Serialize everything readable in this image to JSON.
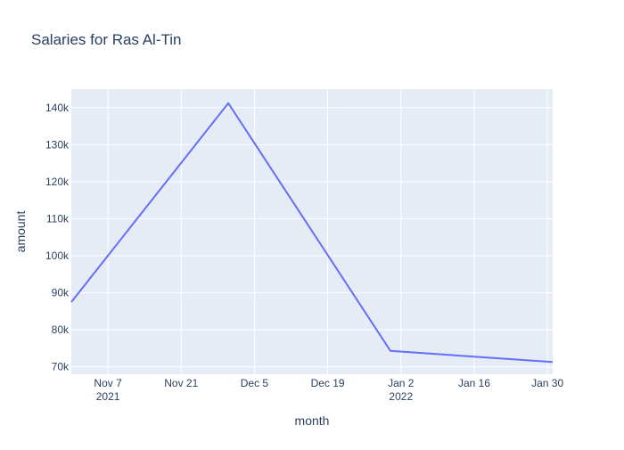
{
  "chart_data": {
    "type": "line",
    "title": "Salaries for Ras Al-Tin",
    "xlabel": "month",
    "ylabel": "amount",
    "x": [
      "2021-10-31",
      "2021-11-30",
      "2021-12-31",
      "2022-01-31"
    ],
    "series": [
      {
        "values": [
          87500,
          141200,
          74300,
          71300
        ]
      }
    ],
    "xlim": [
      "2021-10-31",
      "2022-01-31"
    ],
    "ylim": [
      68000,
      145000
    ],
    "x_ticks": [
      {
        "date": "2021-11-07",
        "label": "Nov 7",
        "sublabel": "2021"
      },
      {
        "date": "2021-11-21",
        "label": "Nov 21",
        "sublabel": ""
      },
      {
        "date": "2021-12-05",
        "label": "Dec 5",
        "sublabel": ""
      },
      {
        "date": "2021-12-19",
        "label": "Dec 19",
        "sublabel": ""
      },
      {
        "date": "2022-01-02",
        "label": "Jan 2",
        "sublabel": "2022"
      },
      {
        "date": "2022-01-16",
        "label": "Jan 16",
        "sublabel": ""
      },
      {
        "date": "2022-01-30",
        "label": "Jan 30",
        "sublabel": ""
      }
    ],
    "y_ticks": [
      {
        "value": 70000,
        "label": "70k"
      },
      {
        "value": 80000,
        "label": "80k"
      },
      {
        "value": 90000,
        "label": "90k"
      },
      {
        "value": 100000,
        "label": "100k"
      },
      {
        "value": 110000,
        "label": "110k"
      },
      {
        "value": 120000,
        "label": "120k"
      },
      {
        "value": 130000,
        "label": "130k"
      },
      {
        "value": 140000,
        "label": "140k"
      }
    ],
    "grid": true,
    "colors": {
      "line": "#636efa",
      "plot_background": "#e5ecf6",
      "grid": "#ffffff",
      "text": "#2a3f5f"
    }
  }
}
